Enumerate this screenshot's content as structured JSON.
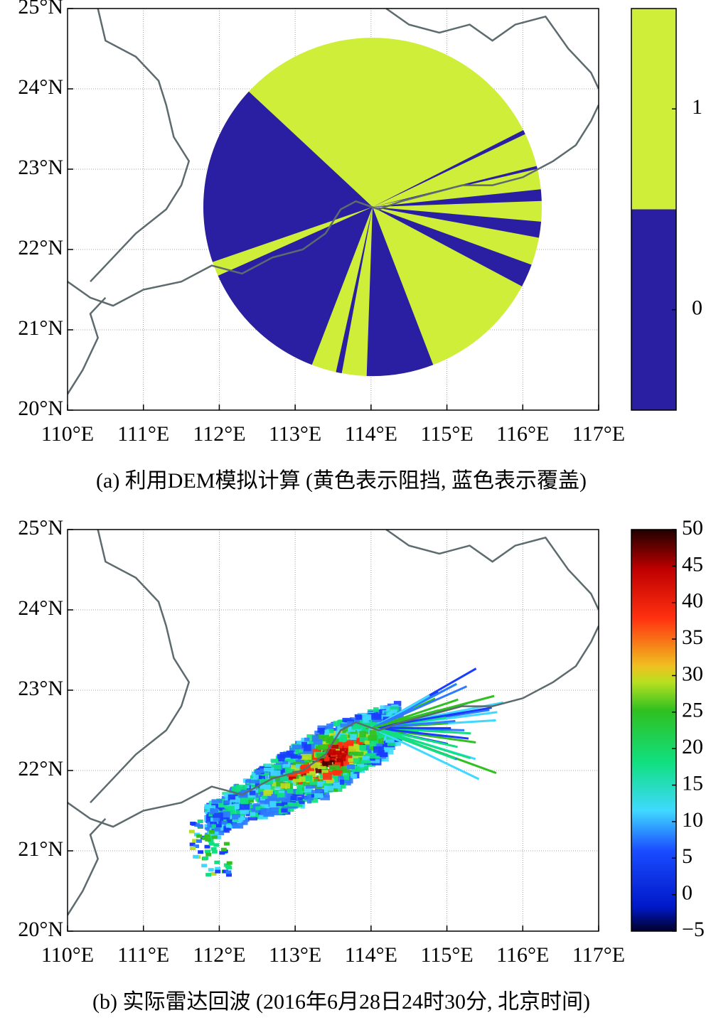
{
  "chart_data": [
    {
      "type": "map",
      "xlim": [
        110,
        117
      ],
      "ylim": [
        20,
        25
      ],
      "xticks": [
        {
          "value": 110,
          "label": "110°E"
        },
        {
          "value": 111,
          "label": "111°E"
        },
        {
          "value": 112,
          "label": "112°E"
        },
        {
          "value": 113,
          "label": "113°E"
        },
        {
          "value": 114,
          "label": "114°E"
        },
        {
          "value": 115,
          "label": "115°E"
        },
        {
          "value": 116,
          "label": "116°E"
        },
        {
          "value": 117,
          "label": "117°E"
        }
      ],
      "yticks": [
        {
          "value": 20,
          "label": "20°N"
        },
        {
          "value": 21,
          "label": "21°N"
        },
        {
          "value": 22,
          "label": "22°N"
        },
        {
          "value": 23,
          "label": "23°N"
        },
        {
          "value": 24,
          "label": "24°N"
        },
        {
          "value": 25,
          "label": "25°N"
        }
      ],
      "colorbar": {
        "lim": [
          -0.5,
          1.5
        ],
        "ticks": [
          0,
          1
        ],
        "colors": [
          "#2a1fa3",
          "#cfee3a"
        ]
      },
      "caption": "(a) 利用DEM模拟计算 (黄色表示阻挡, 蓝色表示覆盖)"
    },
    {
      "type": "map",
      "xlim": [
        110,
        117
      ],
      "ylim": [
        20,
        25
      ],
      "xticks": [
        {
          "value": 110,
          "label": "110°E"
        },
        {
          "value": 111,
          "label": "111°E"
        },
        {
          "value": 112,
          "label": "112°E"
        },
        {
          "value": 113,
          "label": "113°E"
        },
        {
          "value": 114,
          "label": "114°E"
        },
        {
          "value": 115,
          "label": "115°E"
        },
        {
          "value": 116,
          "label": "116°E"
        },
        {
          "value": 117,
          "label": "117°E"
        }
      ],
      "yticks": [
        {
          "value": 20,
          "label": "20°N"
        },
        {
          "value": 21,
          "label": "21°N"
        },
        {
          "value": 22,
          "label": "22°N"
        },
        {
          "value": 23,
          "label": "23°N"
        },
        {
          "value": 24,
          "label": "24°N"
        },
        {
          "value": 25,
          "label": "25°N"
        }
      ],
      "colorbar": {
        "lim": [
          -5,
          50
        ],
        "ticks": [
          {
            "value": -5,
            "label": "−5"
          },
          0,
          5,
          10,
          15,
          20,
          25,
          30,
          35,
          40,
          45,
          50
        ]
      },
      "caption": "(b) 实际雷达回波 (2016年6月28日24时30分, 北京时间)"
    }
  ]
}
